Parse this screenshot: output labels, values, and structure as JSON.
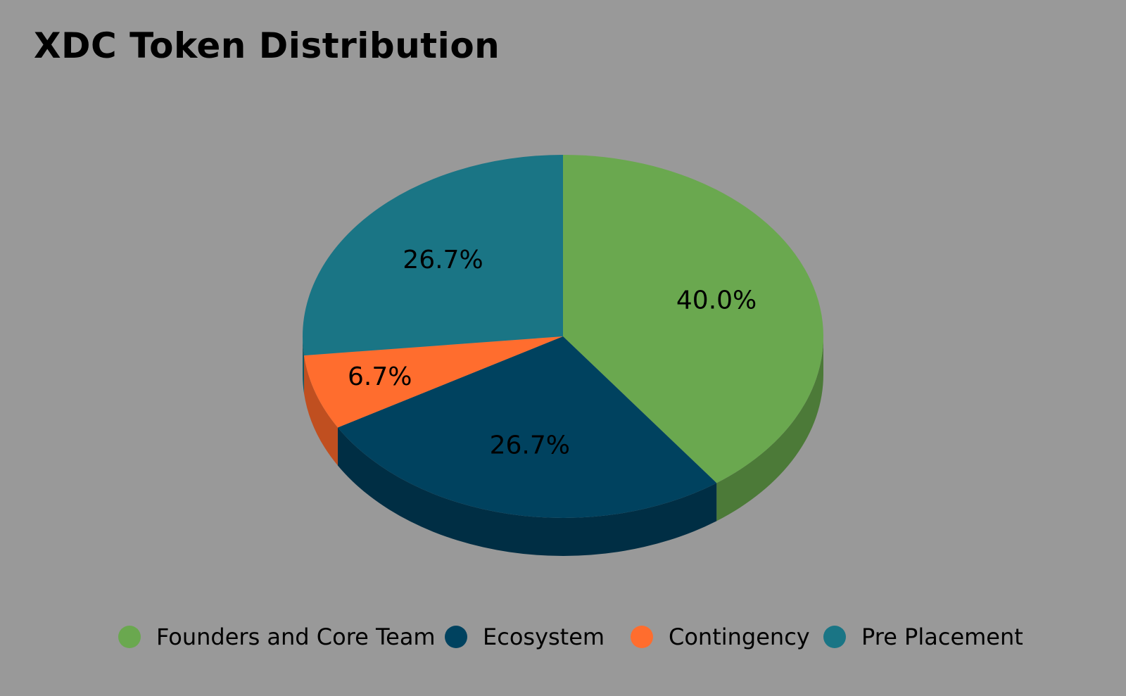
{
  "chart_data": {
    "type": "pie",
    "title": "XDC Token Distribution",
    "categories": [
      "Founders and Core Team",
      "Ecosystem",
      "Contingency",
      "Pre Placement"
    ],
    "values": [
      40.0,
      26.7,
      6.7,
      26.7
    ],
    "labels": [
      "40.0%",
      "26.7%",
      "6.7%",
      "26.7%"
    ],
    "colors": [
      "#6aa84f",
      "#00425f",
      "#ff6d2e",
      "#1a7585"
    ],
    "side_colors": [
      "#4c7a38",
      "#002e44",
      "#c04f20",
      "#125864"
    ],
    "legend_position": "bottom",
    "three_d": true
  }
}
